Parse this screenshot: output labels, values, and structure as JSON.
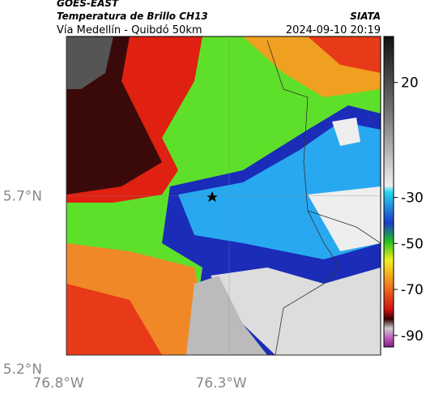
{
  "header": {
    "source": "GOES-EAST",
    "title": "Temperatura de Brillo CH13",
    "route": "Vía Medellín - Quibdó 50km",
    "org": "SIATA",
    "datetime": "2024-09-10 20:19"
  },
  "map": {
    "lon_lim": [
      -76.8,
      -75.835
    ],
    "lat_lim": [
      5.2,
      6.2
    ],
    "lon_ticks": [
      {
        "value": -76.8,
        "label": "76.8°W"
      },
      {
        "value": -76.3,
        "label": "76.3°W"
      }
    ],
    "lat_ticks": [
      {
        "value": 5.7,
        "label": "5.7°N"
      },
      {
        "value": 5.2,
        "label": "5.2°N"
      }
    ]
  },
  "colorbar": {
    "lim": [
      -95,
      40
    ],
    "ticks": [
      20,
      -30,
      -50,
      -70,
      -90
    ]
  }
}
